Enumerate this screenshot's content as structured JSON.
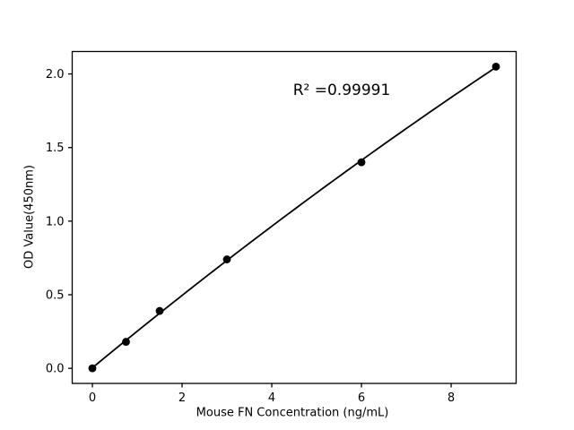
{
  "figure": {
    "background": "#ffffff",
    "foreground": "#000000"
  },
  "chart_data": {
    "type": "scatter",
    "title": "",
    "xlabel": "Mouse FN Concentration (ng/mL)",
    "ylabel": "OD Value(450nm)",
    "x": [
      0,
      0.75,
      1.5,
      3,
      6,
      9
    ],
    "y": [
      0.0,
      0.18,
      0.39,
      0.74,
      1.4,
      2.05
    ],
    "xlim": [
      -0.45,
      9.45
    ],
    "ylim": [
      -0.1025,
      2.1525
    ],
    "xtick_labels": [
      "0",
      "2",
      "4",
      "6",
      "8"
    ],
    "xtick_values": [
      0,
      2,
      4,
      6,
      8
    ],
    "ytick_labels": [
      "0.0",
      "0.5",
      "1.0",
      "1.5",
      "2.0"
    ],
    "ytick_values": [
      0.0,
      0.5,
      1.0,
      1.5,
      2.0
    ],
    "grid": false,
    "legend": null,
    "marker_color": "#000000",
    "line_color": "#000000",
    "trendline": "quadratic",
    "annotation": {
      "text": "R² =0.99991"
    }
  }
}
